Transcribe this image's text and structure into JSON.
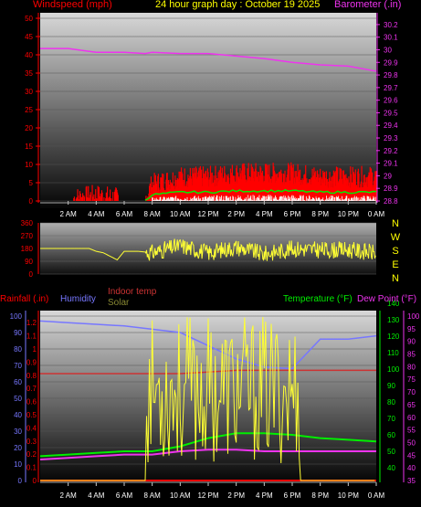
{
  "header": {
    "title": "24 hour graph day : October 19 2025",
    "left_label": "Windspeed (mph)",
    "right_label": "Barometer (.in)"
  },
  "bottom_labels": {
    "rainfall": "Rainfall (.in)",
    "humidity": "Humidity",
    "indoor_temp": "Indoor temp",
    "solar": "Solar",
    "temperature": "Temperature (°F)",
    "dew_point": "Dew Point (°F)"
  },
  "colors": {
    "windspeed": "#ff0000",
    "gust": "#00ee00",
    "barometer": "#ee33ee",
    "direction": "#ffff33",
    "humidity": "#7777ff",
    "indoor_temp": "#cc3333",
    "solar": "#888833",
    "temperature": "#00ee00",
    "dew_point": "#ee33ee",
    "rainfall": "#ff0000",
    "title": "#ffff00"
  },
  "x_ticks": [
    "2 AM",
    "4 AM",
    "6 AM",
    "8 AM",
    "10 AM",
    "12 PM",
    "2 PM",
    "4 PM",
    "6 PM",
    "8 PM",
    "10 PM",
    "0 AM"
  ],
  "chart_data": [
    {
      "type": "line",
      "title": "24 hour graph day : October 19 2025",
      "x": [
        0,
        2,
        4,
        6,
        7.5,
        8,
        10,
        12,
        14,
        16,
        18,
        20,
        22,
        24
      ],
      "series": [
        {
          "name": "Windspeed (mph)",
          "axis": "left",
          "values": [
            0,
            0,
            1,
            0,
            0,
            4,
            6,
            6,
            7,
            7,
            7,
            6,
            6,
            6
          ]
        },
        {
          "name": "Barometer (.in)",
          "axis": "right",
          "values": [
            30.01,
            30.01,
            29.98,
            29.98,
            29.97,
            29.98,
            29.97,
            29.97,
            29.95,
            29.93,
            29.9,
            29.88,
            29.87,
            29.83
          ]
        }
      ],
      "ylabel_left": "Windspeed (mph)",
      "ylabel_right": "Barometer (.in)",
      "y_left_ticks": [
        "0",
        "5",
        "10",
        "15",
        "20",
        "25",
        "30",
        "35",
        "40",
        "45",
        "50"
      ],
      "y_right_ticks": [
        "28.8",
        "28.9",
        "29",
        "29.1",
        "29.2",
        "29.3",
        "29.4",
        "29.5",
        "29.6",
        "29.7",
        "29.8",
        "29.9",
        "30",
        "30.1",
        "30.2"
      ],
      "ylim_left": [
        0,
        50
      ],
      "ylim_right": [
        28.8,
        30.25
      ]
    },
    {
      "type": "line",
      "x": [
        0,
        2,
        3.5,
        4,
        4.5,
        5.5,
        6,
        7,
        8,
        10,
        12,
        14,
        16,
        18,
        20,
        22,
        24
      ],
      "series": [
        {
          "name": "Wind direction",
          "values": [
            180,
            180,
            180,
            160,
            150,
            100,
            160,
            160,
            150,
            200,
            150,
            190,
            140,
            180,
            170,
            170,
            150
          ]
        }
      ],
      "y_left_ticks": [
        "0",
        "90",
        "180",
        "270",
        "360"
      ],
      "y_right_ticks": [
        "N",
        "W",
        "S",
        "E",
        "N"
      ],
      "ylim": [
        0,
        360
      ]
    },
    {
      "type": "line",
      "x": [
        0,
        2,
        4,
        6,
        8,
        10,
        12,
        14,
        16,
        18,
        20,
        22,
        24
      ],
      "series": [
        {
          "name": "Humidity",
          "axis": "left",
          "values": [
            97,
            96,
            95,
            94,
            92,
            90,
            82,
            74,
            69,
            68,
            86,
            86,
            88
          ]
        },
        {
          "name": "Indoor temp",
          "axis": "left",
          "values": [
            65,
            65,
            65,
            65,
            65,
            65,
            66,
            67,
            67,
            67,
            67,
            67,
            67
          ]
        },
        {
          "name": "Solar",
          "axis": "left",
          "values": [
            0,
            0,
            0,
            0,
            5,
            15,
            30,
            45,
            35,
            5,
            0,
            0,
            0
          ]
        },
        {
          "name": "Temperature (°F)",
          "axis": "right",
          "values": [
            47,
            48,
            49,
            50,
            50,
            53,
            58,
            61,
            61,
            60,
            58,
            57,
            56
          ]
        },
        {
          "name": "Dew Point (°F)",
          "axis": "right",
          "values": [
            45,
            46,
            47,
            48,
            48,
            50,
            51,
            51,
            50,
            50,
            50,
            50,
            50
          ]
        },
        {
          "name": "Rainfall (.in)",
          "axis": "far-left",
          "values": [
            0,
            0,
            0,
            0,
            0,
            0,
            0,
            0,
            0,
            0,
            0,
            0,
            0
          ]
        }
      ],
      "y_left_ticks": [
        "0",
        "10",
        "20",
        "30",
        "40",
        "50",
        "60",
        "70",
        "80",
        "90",
        "100"
      ],
      "y_rain_ticks": [
        "0",
        "0.1",
        "0.2",
        "0.3",
        "0.4",
        "0.5",
        "0.6",
        "0.7",
        "0.8",
        "0.9",
        "1",
        "1.1",
        "1.2"
      ],
      "y_right_ticks": [
        "40",
        "50",
        "60",
        "70",
        "80",
        "90",
        "100",
        "110",
        "120",
        "130",
        "140"
      ],
      "y_far_right_ticks": [
        "35",
        "40",
        "45",
        "50",
        "55",
        "60",
        "65",
        "70",
        "75",
        "80",
        "85",
        "90",
        "95",
        "100"
      ],
      "ylim_left": [
        0,
        100
      ],
      "ylim_right": [
        40,
        140
      ]
    }
  ]
}
